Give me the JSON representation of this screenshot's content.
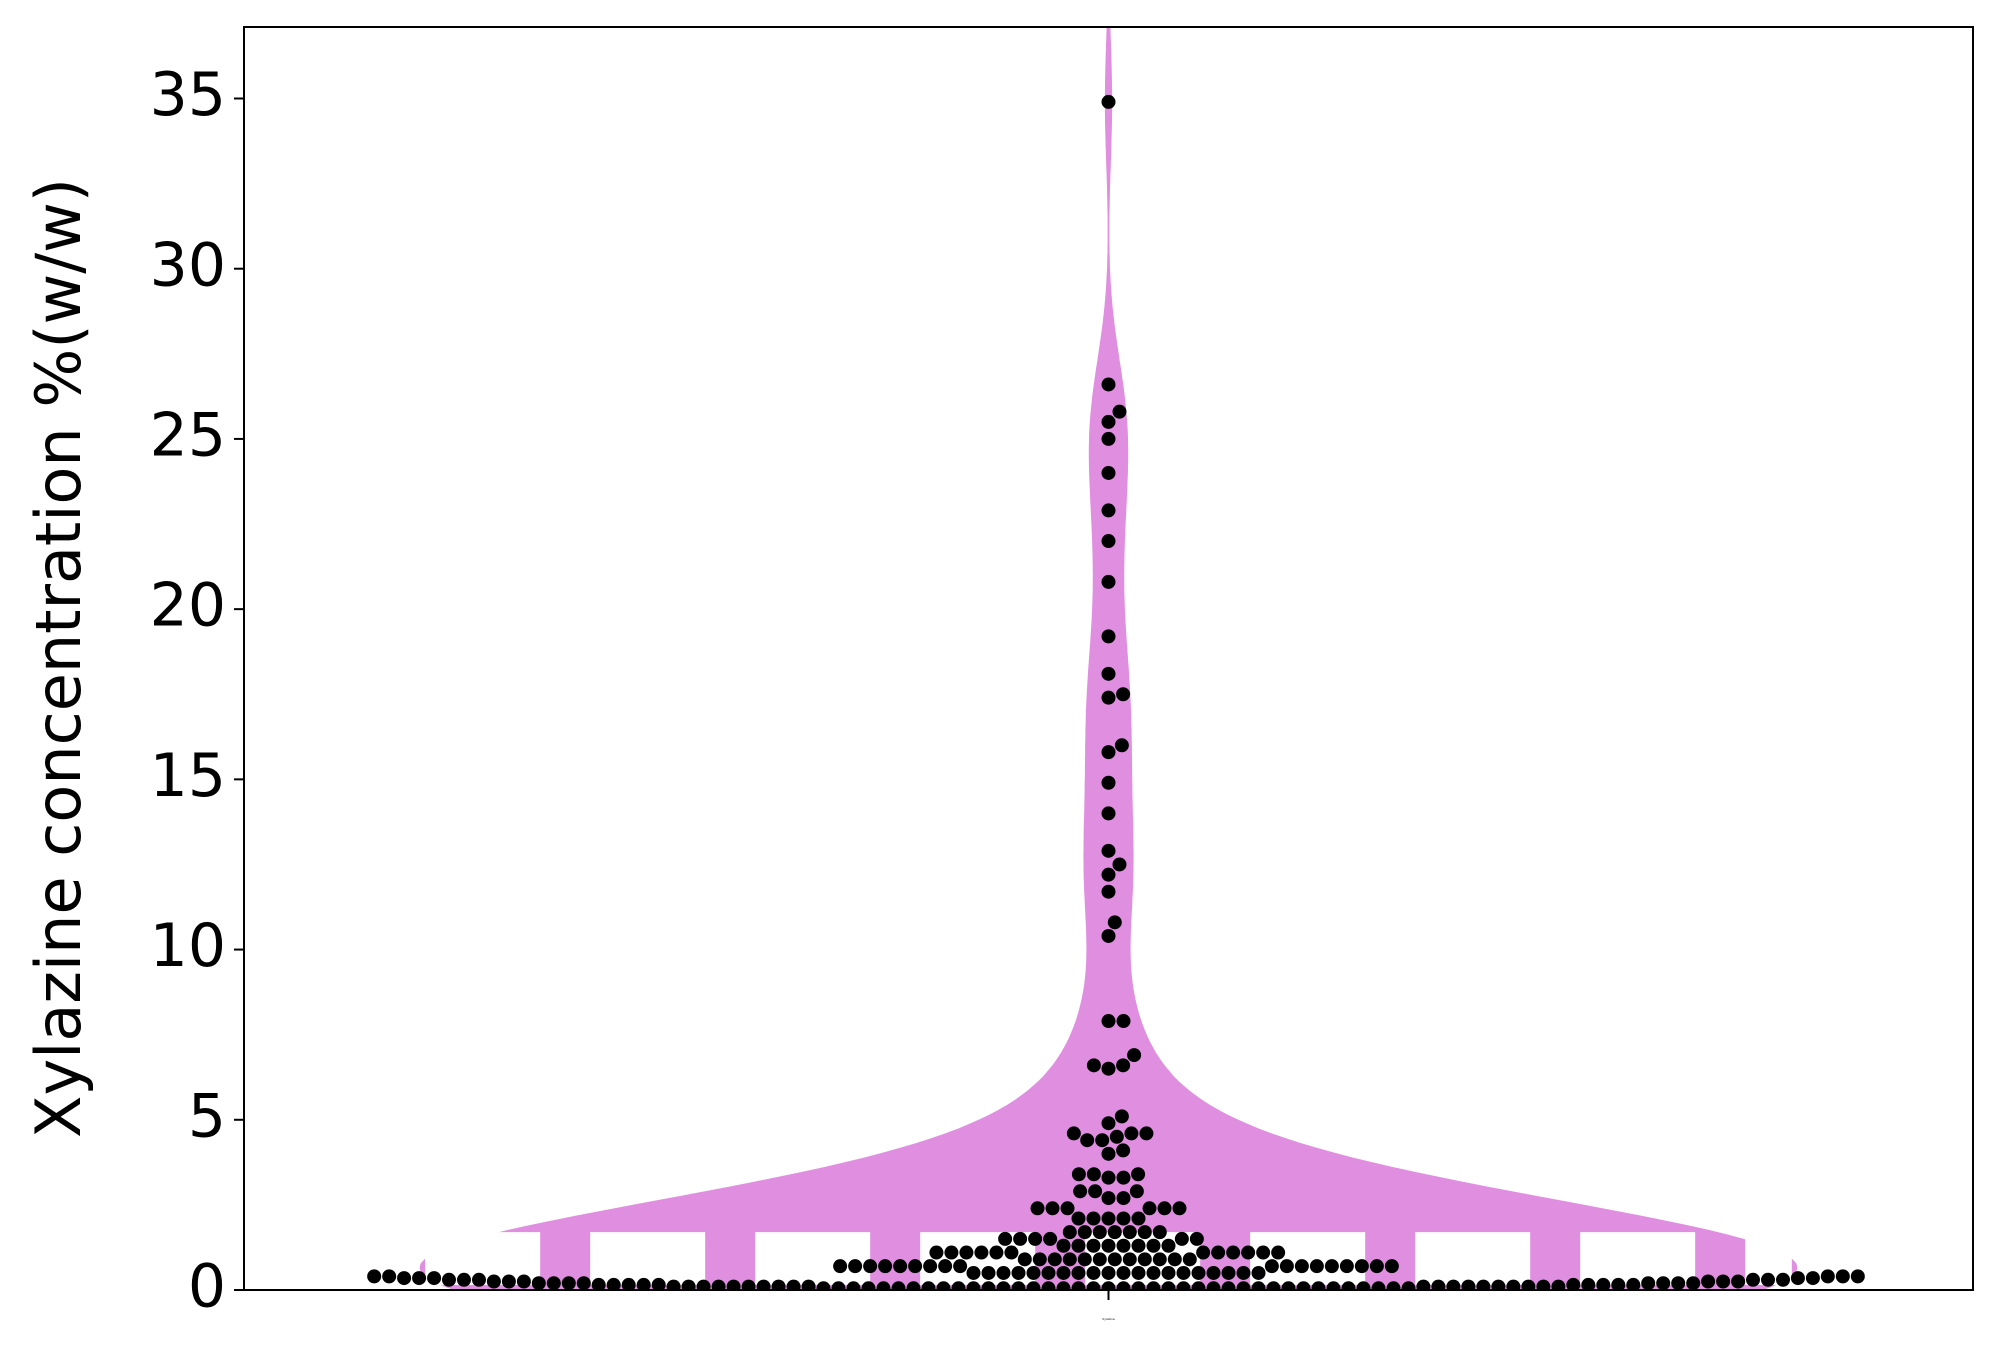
{
  "chart_data": {
    "type": "violin",
    "ylabel": "Xylazine concentration %(w/w)",
    "categories": [
      "Xylazine"
    ],
    "color": "#e08fe0",
    "point_color": "#000000",
    "ylim": [
      0,
      37.1
    ],
    "yticks": [
      0,
      5,
      10,
      15,
      20,
      25,
      30,
      35
    ],
    "values": [
      0.05,
      0.05,
      0.05,
      0.05,
      0.05,
      0.05,
      0.05,
      0.05,
      0.05,
      0.05,
      0.05,
      0.05,
      0.05,
      0.05,
      0.05,
      0.05,
      0.05,
      0.05,
      0.05,
      0.05,
      0.05,
      0.05,
      0.05,
      0.05,
      0.05,
      0.05,
      0.05,
      0.05,
      0.05,
      0.05,
      0.05,
      0.05,
      0.05,
      0.05,
      0.05,
      0.05,
      0.05,
      0.05,
      0.05,
      0.05,
      0.1,
      0.1,
      0.1,
      0.1,
      0.1,
      0.1,
      0.1,
      0.1,
      0.1,
      0.1,
      0.1,
      0.1,
      0.1,
      0.1,
      0.1,
      0.1,
      0.1,
      0.1,
      0.1,
      0.1,
      0.15,
      0.15,
      0.15,
      0.15,
      0.15,
      0.15,
      0.15,
      0.15,
      0.15,
      0.15,
      0.2,
      0.2,
      0.2,
      0.2,
      0.2,
      0.2,
      0.2,
      0.2,
      0.25,
      0.25,
      0.25,
      0.25,
      0.25,
      0.25,
      0.3,
      0.3,
      0.3,
      0.3,
      0.3,
      0.3,
      0.35,
      0.35,
      0.35,
      0.35,
      0.35,
      0.4,
      0.4,
      0.4,
      0.4,
      0.4,
      0.5,
      0.5,
      0.5,
      0.5,
      0.5,
      0.5,
      0.5,
      0.5,
      0.5,
      0.5,
      0.5,
      0.5,
      0.5,
      0.5,
      0.5,
      0.5,
      0.5,
      0.5,
      0.5,
      0.5,
      0.7,
      0.7,
      0.7,
      0.7,
      0.7,
      0.7,
      0.7,
      0.7,
      0.7,
      0.7,
      0.7,
      0.7,
      0.7,
      0.7,
      0.7,
      0.7,
      0.7,
      0.7,
      0.9,
      0.9,
      0.9,
      0.9,
      0.9,
      0.9,
      0.9,
      0.9,
      0.9,
      0.9,
      0.9,
      0.9,
      1.1,
      1.1,
      1.1,
      1.1,
      1.1,
      1.1,
      1.1,
      1.1,
      1.1,
      1.1,
      1.1,
      1.1,
      1.3,
      1.3,
      1.3,
      1.3,
      1.3,
      1.3,
      1.3,
      1.3,
      1.5,
      1.5,
      1.5,
      1.5,
      1.5,
      1.5,
      1.7,
      1.7,
      1.7,
      1.7,
      1.7,
      1.7,
      1.7,
      2.1,
      2.1,
      2.1,
      2.1,
      2.1,
      2.4,
      2.4,
      2.4,
      2.4,
      2.4,
      2.4,
      2.7,
      2.7,
      2.9,
      2.9,
      2.9,
      3.3,
      3.3,
      3.4,
      3.4,
      3.4,
      4.0,
      4.1,
      4.4,
      4.4,
      4.5,
      4.6,
      4.6,
      4.6,
      4.9,
      5.1,
      6.5,
      6.6,
      6.6,
      6.9,
      7.9,
      7.9,
      10.4,
      10.8,
      11.7,
      12.2,
      12.5,
      12.9,
      14.0,
      14.9,
      15.8,
      16.0,
      17.4,
      17.5,
      18.1,
      19.2,
      20.8,
      22.0,
      22.9,
      24.0,
      25.0,
      25.5,
      25.8,
      26.6,
      34.9
    ]
  }
}
